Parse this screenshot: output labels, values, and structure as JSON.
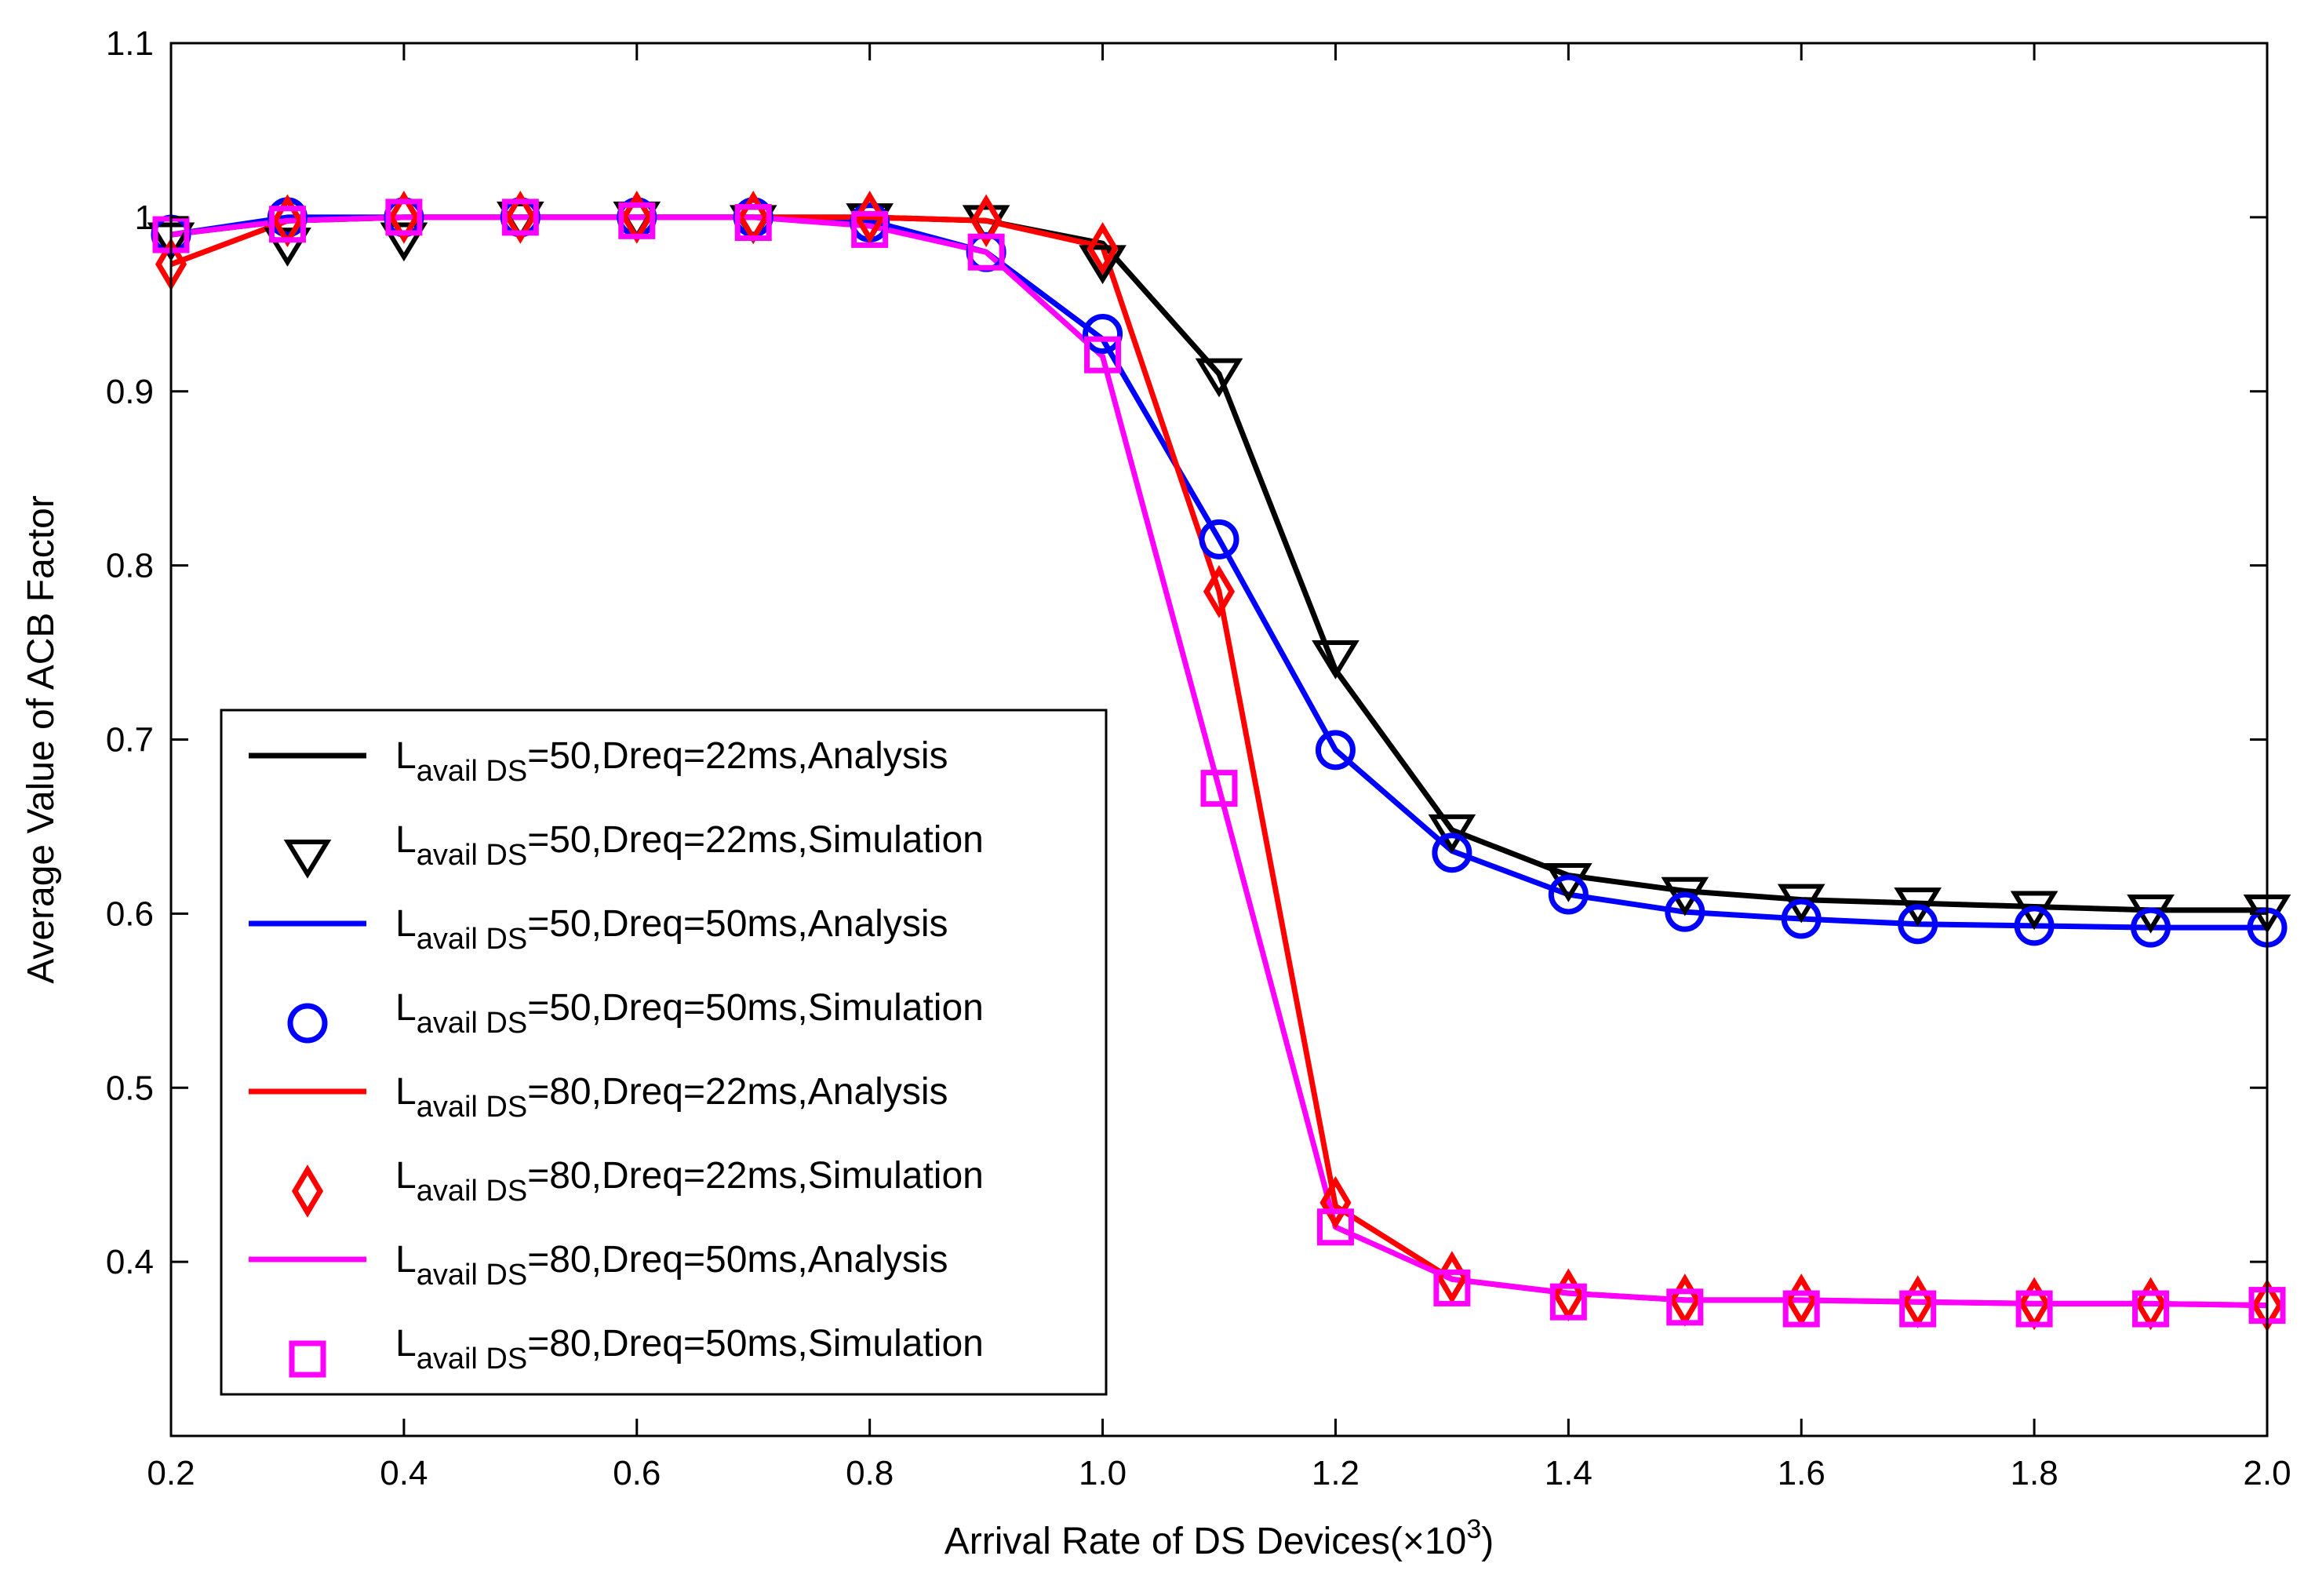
{
  "chart_data": {
    "type": "line",
    "xlabel": "Arrival Rate of DS Devices(×10",
    "xlabel_exp": "3",
    "xlabel_close": ")",
    "ylabel": "Average Value of ACB Factor",
    "xlim": [
      0.2,
      2.0
    ],
    "ylim": [
      0.3,
      1.1
    ],
    "xticks": [
      0.2,
      0.4,
      0.6,
      0.8,
      1.0,
      1.2,
      1.4,
      1.6,
      1.8,
      2.0
    ],
    "xtick_labels": [
      "0.2",
      "0.4",
      "0.6",
      "0.8",
      "1.0",
      "1.2",
      "1.4",
      "1.6",
      "1.8",
      "2.0"
    ],
    "yticks": [
      0.4,
      0.5,
      0.6,
      0.7,
      0.8,
      0.9,
      1.0,
      1.1
    ],
    "ytick_labels": [
      "0.4",
      "0.5",
      "0.6",
      "0.7",
      "0.8",
      "0.9",
      "1",
      "1.1"
    ],
    "x": [
      0.2,
      0.3,
      0.4,
      0.5,
      0.6,
      0.7,
      0.8,
      0.9,
      1.0,
      1.1,
      1.2,
      1.3,
      1.4,
      1.5,
      1.6,
      1.7,
      1.8,
      1.9,
      2.0
    ],
    "grid": false,
    "legend_position": "lower-left",
    "series": [
      {
        "name": "L_avail DS=50,Dreq=22ms,Analysis",
        "kind": "line",
        "color": "#000000",
        "values": [
          0.99,
          0.998,
          1.0,
          1.0,
          1.0,
          1.0,
          1.0,
          0.998,
          0.985,
          0.91,
          0.74,
          0.648,
          0.622,
          0.613,
          0.608,
          0.606,
          0.604,
          0.602,
          0.602
        ]
      },
      {
        "name": "L_avail DS=50,Dreq=22ms,Simulation",
        "kind": "marker",
        "marker": "triangle-down",
        "color": "#000000",
        "values": [
          0.988,
          0.985,
          0.988,
          1.0,
          1.0,
          0.998,
          0.999,
          0.998,
          0.975,
          0.91,
          0.748,
          0.648,
          0.62,
          0.612,
          0.608,
          0.606,
          0.604,
          0.602,
          0.602
        ]
      },
      {
        "name": "L_avail DS=50,Dreq=50ms,Analysis",
        "kind": "line",
        "color": "#0000ff",
        "values": [
          0.99,
          1.0,
          1.0,
          1.0,
          1.0,
          1.0,
          0.998,
          0.98,
          0.93,
          0.815,
          0.694,
          0.636,
          0.611,
          0.601,
          0.597,
          0.594,
          0.593,
          0.592,
          0.592
        ]
      },
      {
        "name": "L_avail DS=50,Dreq=50ms,Simulation",
        "kind": "marker",
        "marker": "circle",
        "color": "#0000ff",
        "values": [
          0.99,
          1.0,
          1.0,
          1.0,
          1.0,
          1.0,
          0.997,
          0.98,
          0.933,
          0.815,
          0.694,
          0.635,
          0.611,
          0.601,
          0.597,
          0.594,
          0.593,
          0.592,
          0.592
        ]
      },
      {
        "name": "L_avail DS=80,Dreq=22ms,Analysis",
        "kind": "line",
        "color": "#ff0000",
        "values": [
          0.973,
          0.998,
          1.0,
          1.0,
          1.0,
          1.0,
          1.0,
          0.998,
          0.983,
          0.785,
          0.432,
          0.39,
          0.382,
          0.378,
          0.378,
          0.377,
          0.376,
          0.376,
          0.375
        ]
      },
      {
        "name": "L_avail DS=80,Dreq=22ms,Simulation",
        "kind": "marker",
        "marker": "diamond",
        "color": "#ff0000",
        "values": [
          0.973,
          0.998,
          1.0,
          1.0,
          1.0,
          1.0,
          1.0,
          0.998,
          0.982,
          0.785,
          0.434,
          0.391,
          0.381,
          0.378,
          0.378,
          0.377,
          0.376,
          0.376,
          0.375
        ]
      },
      {
        "name": "L_avail DS=80,Dreq=50ms,Analysis",
        "kind": "line",
        "color": "#ff00ff",
        "values": [
          0.99,
          0.998,
          1.0,
          1.0,
          1.0,
          1.0,
          0.995,
          0.98,
          0.92,
          0.672,
          0.42,
          0.39,
          0.382,
          0.378,
          0.378,
          0.377,
          0.376,
          0.376,
          0.375
        ]
      },
      {
        "name": "L_avail DS=80,Dreq=50ms,Simulation",
        "kind": "marker",
        "marker": "square",
        "color": "#ff00ff",
        "values": [
          0.99,
          0.996,
          1.0,
          1.0,
          0.998,
          0.997,
          0.993,
          0.98,
          0.921,
          0.672,
          0.42,
          0.385,
          0.377,
          0.374,
          0.373,
          0.373,
          0.373,
          0.373,
          0.375
        ]
      }
    ],
    "legend": [
      {
        "main": "L",
        "sub": "avail DS",
        "rest": "=50,Dreq=22ms,Analysis"
      },
      {
        "main": "L",
        "sub": "avail DS",
        "rest": "=50,Dreq=22ms,Simulation"
      },
      {
        "main": "L",
        "sub": "avail DS",
        "rest": "=50,Dreq=50ms,Analysis"
      },
      {
        "main": "L",
        "sub": "avail DS",
        "rest": "=50,Dreq=50ms,Simulation"
      },
      {
        "main": "L",
        "sub": "avail DS",
        "rest": "=80,Dreq=22ms,Analysis"
      },
      {
        "main": "L",
        "sub": "avail DS",
        "rest": "=80,Dreq=22ms,Simulation"
      },
      {
        "main": "L",
        "sub": "avail DS",
        "rest": "=80,Dreq=50ms,Analysis"
      },
      {
        "main": "L",
        "sub": "avail DS",
        "rest": "=80,Dreq=50ms,Simulation"
      }
    ]
  }
}
